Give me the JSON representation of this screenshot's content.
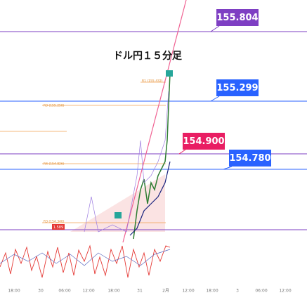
{
  "title": "ドル円１５分足",
  "levels": [
    {
      "label": "155.804",
      "color": "#7e3fc3"
    },
    {
      "label": "155.299",
      "color": "#2962ff"
    },
    {
      "label": "154.900",
      "color": "#e91e63"
    },
    {
      "label": "154.780",
      "color": "#2962ff"
    }
  ],
  "pivots": [
    "R1 (155.432)",
    "R3 (155.258)",
    "R4 (154.826)",
    "R3 (154.340)"
  ],
  "badge": "1.589",
  "x_labels": [
    "18:00",
    "30",
    "06:00",
    "12:00",
    "18:00",
    "31",
    "2月",
    "12:00",
    "18:00",
    "3",
    "06:00",
    "12:00"
  ]
}
